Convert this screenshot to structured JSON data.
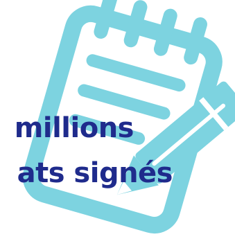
{
  "caption": {
    "line1": "millions",
    "line2": "ats signés"
  },
  "colors": {
    "illustration": "#7dd3e0",
    "text": "#1f2b8c",
    "background": "#ffffff"
  },
  "icons": {
    "notepad": "notepad-icon",
    "pencil": "pencil-icon"
  }
}
